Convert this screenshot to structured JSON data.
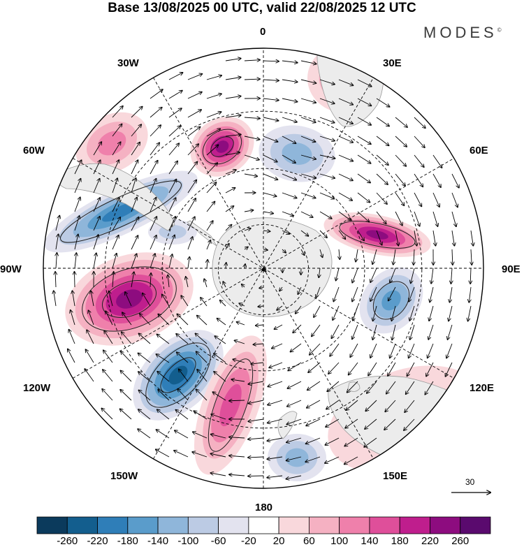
{
  "title": "Base 13/08/2025 00 UTC, valid 22/08/2025 12 UTC",
  "brand": "MODES",
  "brand_mark": "©",
  "longitude_labels": {
    "lon_0": "0",
    "lon_30e": "30E",
    "lon_60e": "60E",
    "lon_90e": "90E",
    "lon_120e": "120E",
    "lon_150e": "150E",
    "lon_180": "180",
    "lon_150w": "150W",
    "lon_120w": "120W",
    "lon_90w": "90W",
    "lon_60w": "60W",
    "lon_30w": "30W"
  },
  "vector_scale_label": "30",
  "colorbar": {
    "labels": [
      "-260",
      "-220",
      "-180",
      "-140",
      "-100",
      "-60",
      "-20",
      "20",
      "60",
      "100",
      "140",
      "180",
      "220",
      "260"
    ],
    "colors": [
      "#0b3a5c",
      "#135e8e",
      "#2f7eb8",
      "#5a9ccb",
      "#8fb6da",
      "#bccbe4",
      "#e3e3ef",
      "#ffffff",
      "#f9d8dc",
      "#f5b1c2",
      "#ef80ab",
      "#df4f9a",
      "#bf1e8d",
      "#8d0c7f",
      "#5a0a6e"
    ]
  },
  "land_color": "#ececec",
  "coast_color": "#9a9a9a"
}
